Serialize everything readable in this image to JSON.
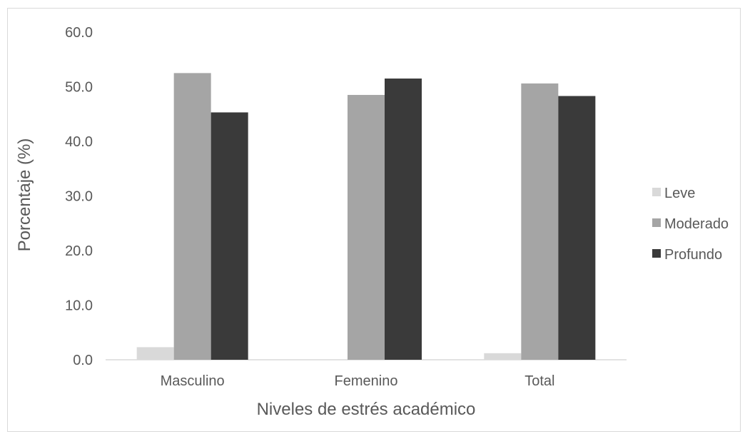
{
  "chart_data": {
    "type": "bar",
    "title": "",
    "xlabel": "Niveles de estrés académico",
    "ylabel": "Porcentaje (%)",
    "categories": [
      "Masculino",
      "Femenino",
      "Total"
    ],
    "ylim": [
      0,
      60
    ],
    "yticks": [
      "0.0",
      "10.0",
      "20.0",
      "30.0",
      "40.0",
      "50.0",
      "60.0"
    ],
    "ytick_values": [
      0,
      10,
      20,
      30,
      40,
      50,
      60
    ],
    "grid": false,
    "legend_position": "right",
    "series": [
      {
        "name": "Leve",
        "color": "#d9d9d9",
        "values": [
          2.3,
          0.0,
          1.2
        ]
      },
      {
        "name": "Moderado",
        "color": "#a5a5a5",
        "values": [
          52.5,
          48.5,
          50.6
        ]
      },
      {
        "name": "Profundo",
        "color": "#3a3a3a",
        "values": [
          45.3,
          51.5,
          48.3
        ]
      }
    ]
  }
}
